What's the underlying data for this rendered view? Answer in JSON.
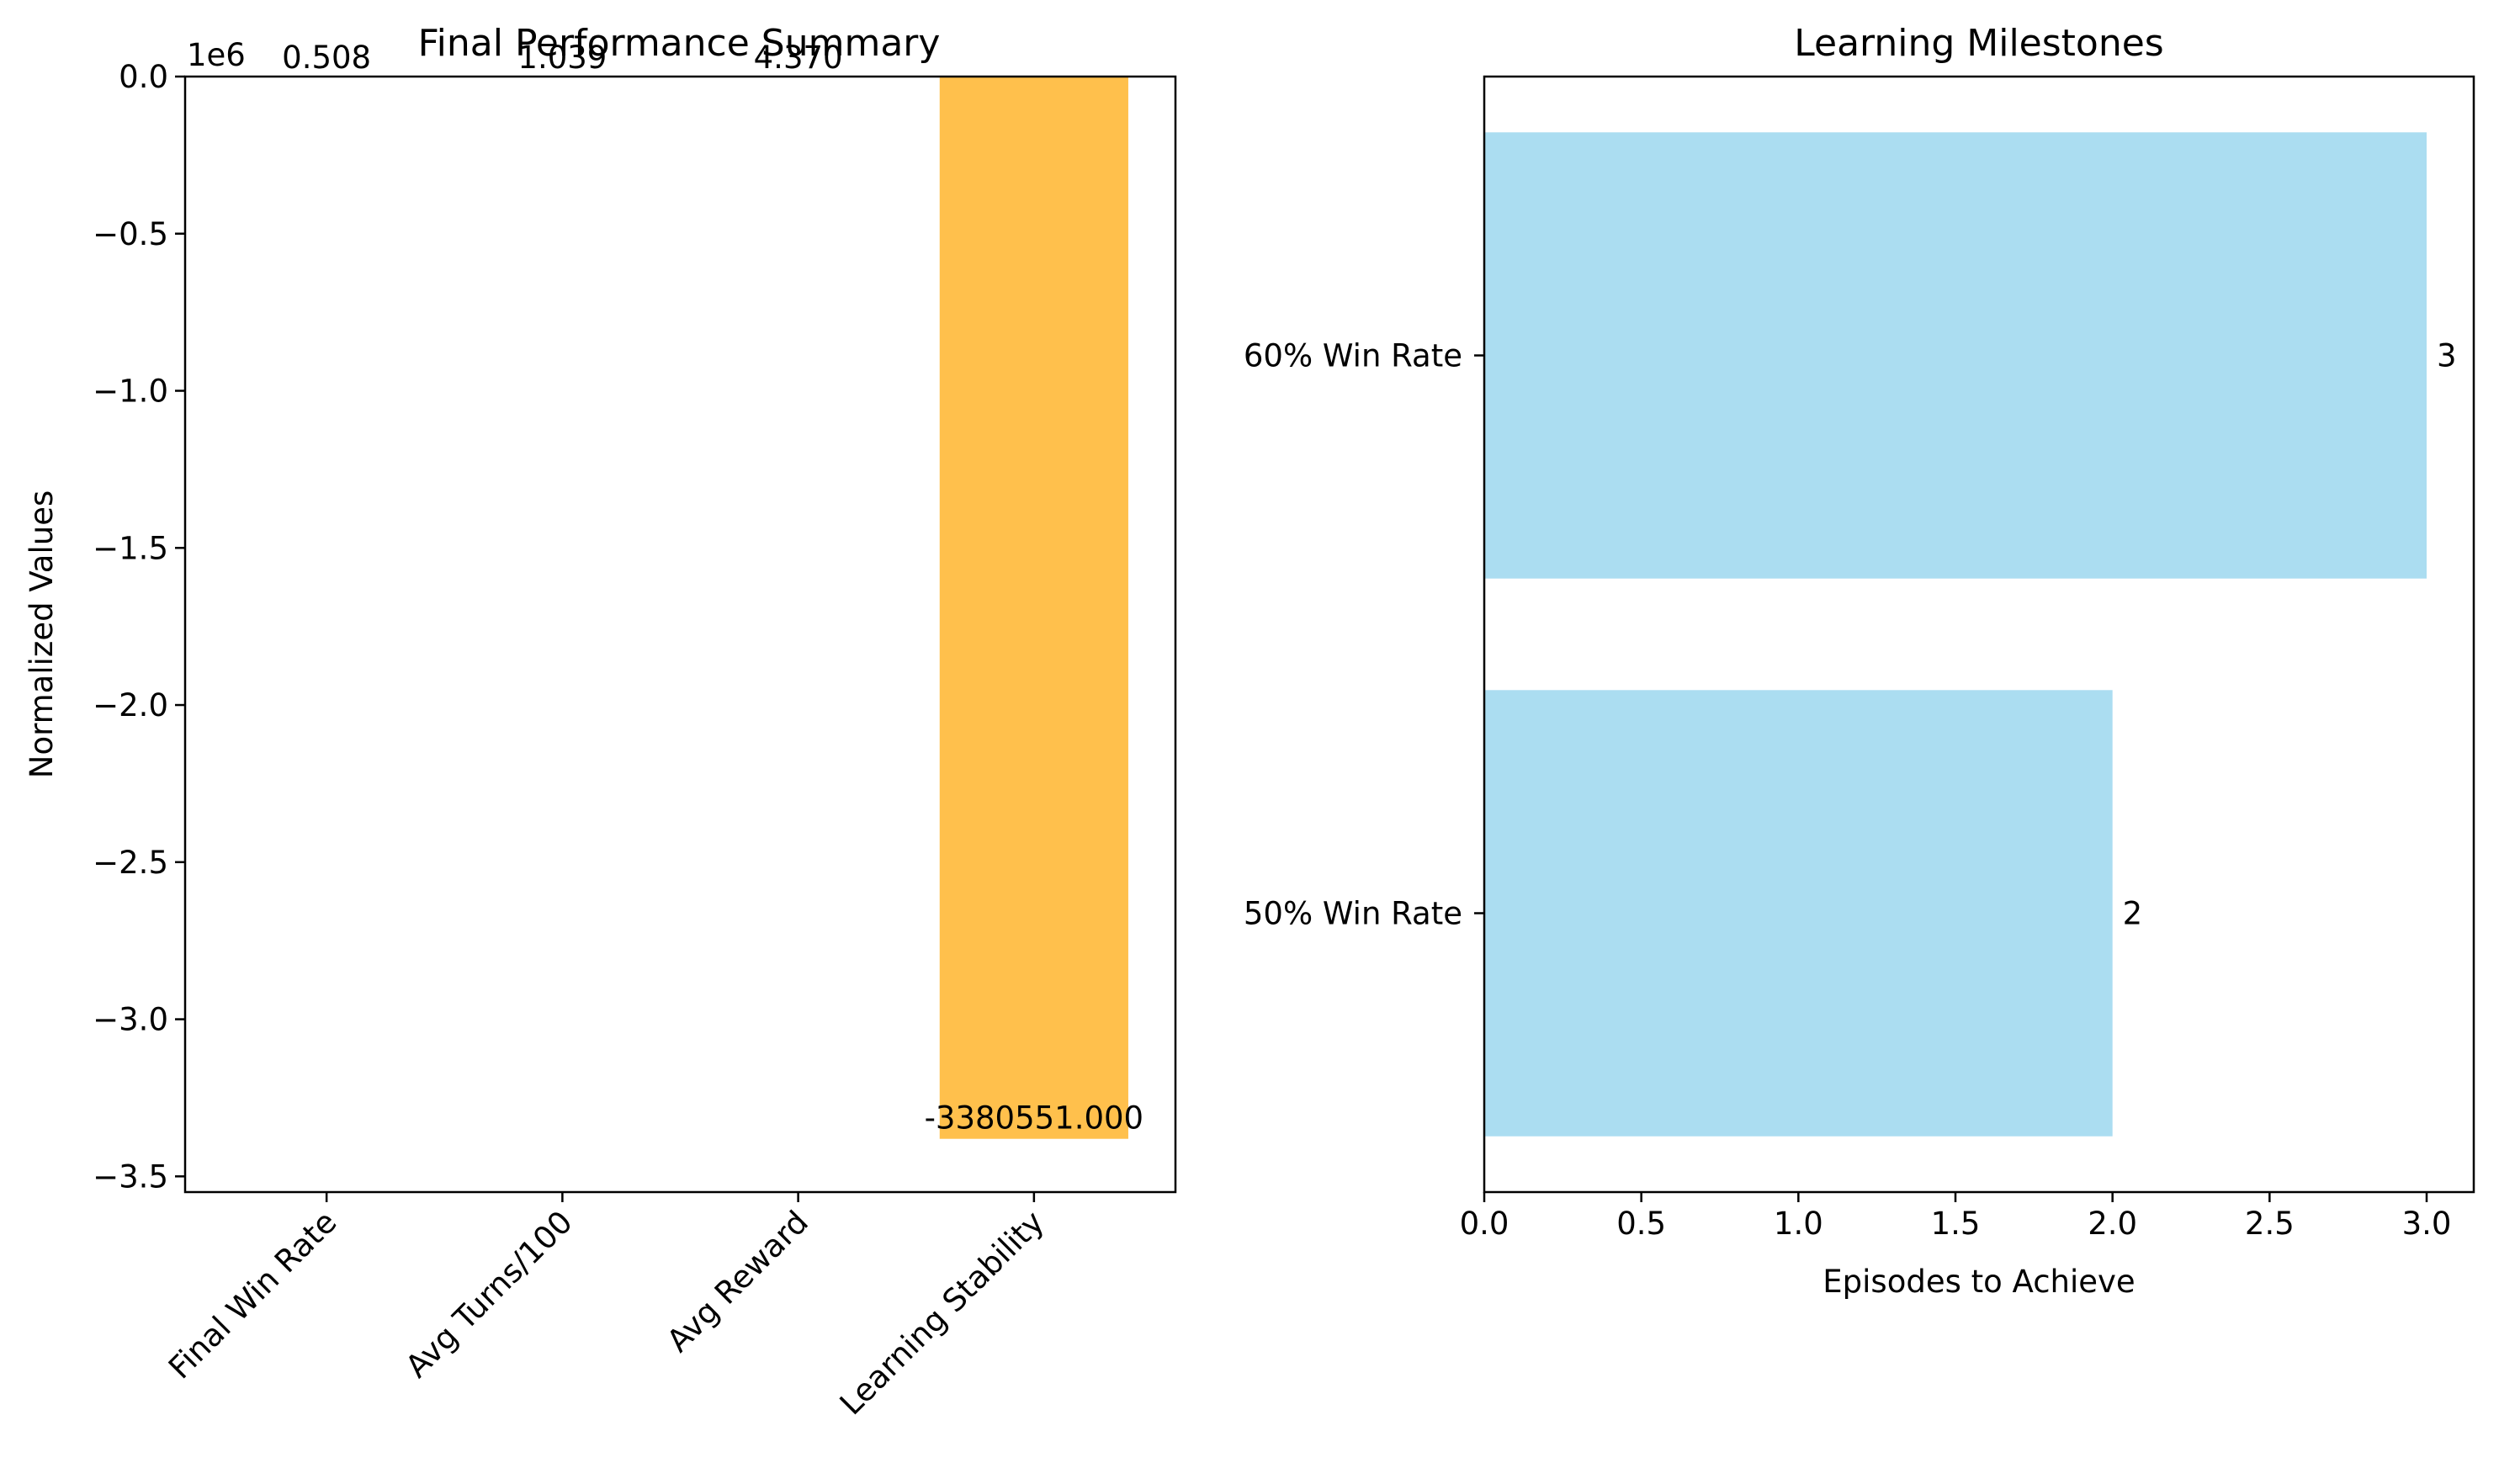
{
  "chart_data": [
    {
      "type": "bar",
      "title": "Final Performance Summary",
      "xlabel": "",
      "ylabel": "Normalized Values",
      "y_offset_text": "1e6",
      "categories": [
        "Final Win Rate",
        "Avg Turns/100",
        "Avg Reward",
        "Learning Stability"
      ],
      "values": [
        0.508,
        1.039,
        4.37,
        -3380551.0
      ],
      "value_labels": [
        "0.508",
        "1.039",
        "4.370",
        "-3380551.000"
      ],
      "colors": [
        "#87ceeb",
        "#90ee90",
        "#f08080",
        "#ffa500"
      ],
      "ylim": [
        -3550000,
        0
      ],
      "ytick_values": [
        0,
        -500000,
        -1000000,
        -1500000,
        -2000000,
        -2500000,
        -3000000,
        -3500000
      ],
      "ytick_labels": [
        "0.0",
        "−0.5",
        "−1.0",
        "−1.5",
        "−2.0",
        "−2.5",
        "−3.0",
        "−3.5"
      ],
      "xtick_rotation_deg": 45,
      "grid": false
    },
    {
      "type": "bar",
      "orientation": "horizontal",
      "title": "Learning Milestones",
      "xlabel": "Episodes to Achieve",
      "ylabel": "",
      "categories": [
        "50% Win Rate",
        "60% Win Rate"
      ],
      "values": [
        2,
        3
      ],
      "value_labels": [
        "2",
        "3"
      ],
      "color": "#87ceeb",
      "xlim": [
        0,
        3.15
      ],
      "xtick_values": [
        0,
        0.5,
        1,
        1.5,
        2,
        2.5,
        3
      ],
      "xtick_labels": [
        "0.0",
        "0.5",
        "1.0",
        "1.5",
        "2.0",
        "2.5",
        "3.0"
      ],
      "grid": false
    }
  ]
}
